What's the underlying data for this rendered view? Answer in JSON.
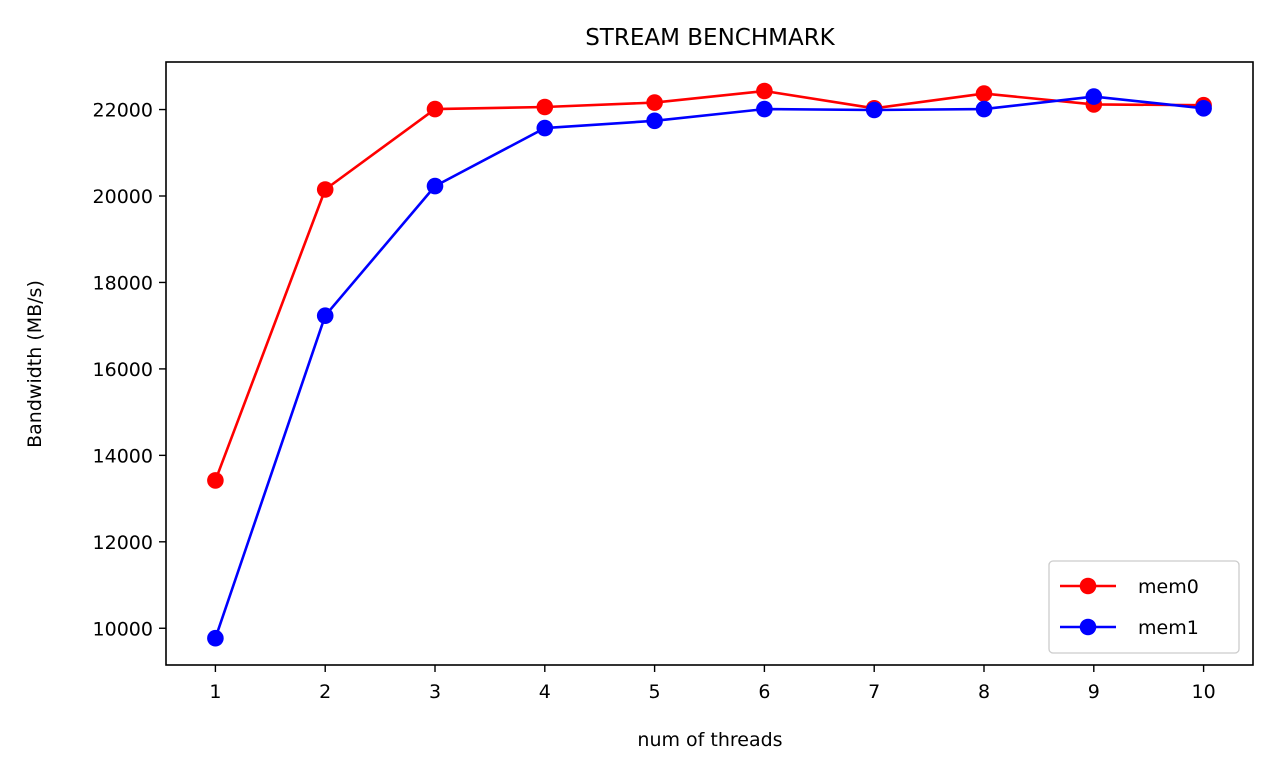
{
  "chart_data": {
    "type": "line",
    "title": "STREAM BENCHMARK",
    "xlabel": "num of threads",
    "ylabel": "Bandwidth (MB/s)",
    "x": [
      1,
      2,
      3,
      4,
      5,
      6,
      7,
      8,
      9,
      10
    ],
    "x_ticks": [
      "1",
      "2",
      "3",
      "4",
      "5",
      "6",
      "7",
      "8",
      "9",
      "10"
    ],
    "y_ticks": [
      "10000",
      "12000",
      "14000",
      "16000",
      "18000",
      "20000",
      "22000"
    ],
    "xlim": [
      0.55,
      10.45
    ],
    "ylim": [
      9150,
      23100
    ],
    "grid": false,
    "legend_position": "lower-right",
    "series": [
      {
        "name": "mem0",
        "color": "#ff0000",
        "marker": "circle",
        "values": [
          13420,
          20150,
          22010,
          22060,
          22160,
          22430,
          22030,
          22370,
          22120,
          22100
        ]
      },
      {
        "name": "mem1",
        "color": "#0000ff",
        "marker": "circle",
        "values": [
          9770,
          17230,
          20230,
          21570,
          21740,
          22010,
          21990,
          22010,
          22300,
          22030
        ]
      }
    ]
  }
}
